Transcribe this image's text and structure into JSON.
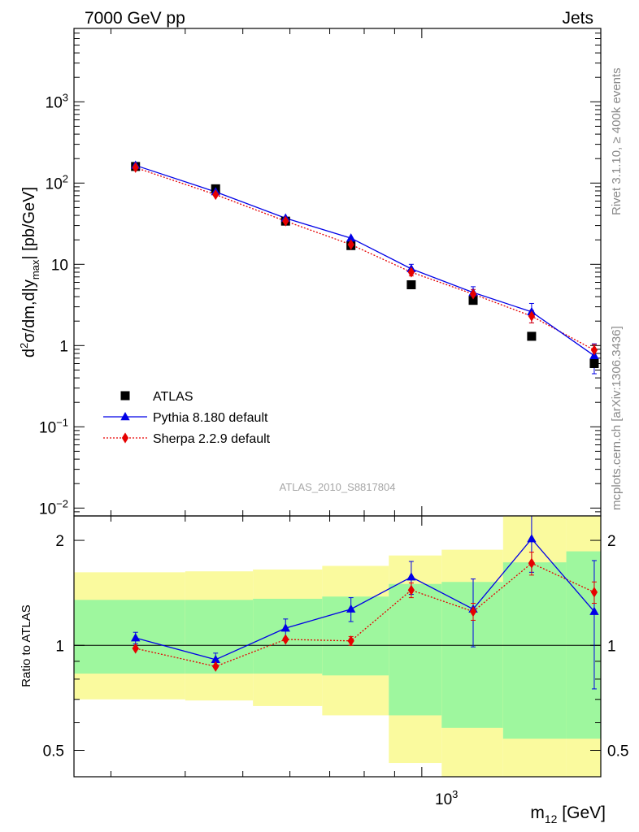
{
  "header": {
    "left": "7000 GeV pp",
    "right": "Jets"
  },
  "side_labels": {
    "rivet": "Rivet 3.1.10, ≥ 400k events",
    "mcplots": "mcplots.cern.ch [arXiv:1306.3436]"
  },
  "watermark": "ATLAS_2010_S8817804",
  "colors": {
    "atlas": "#000000",
    "pythia": "#0000e6",
    "sherpa": "#e60000",
    "band_inner": "#9ef79e",
    "band_outer": "#fafa9e"
  },
  "chart_data": [
    {
      "type": "scatter",
      "ylabel": "d²σ/dm,d|yₘₐₓ| [pb/GeV]",
      "ylabel_parts": {
        "a": "d",
        "b": "2",
        "c": "σ/dm,d|y",
        "d": "max",
        "e": "| [pb/GeV]"
      },
      "yscale": "log",
      "ylim": [
        0.008,
        8000
      ],
      "xscale": "log",
      "xlim": [
        260,
        2000
      ],
      "yticks": [
        "10⁻²",
        "10⁻¹",
        "1",
        "10",
        "10²",
        "10³"
      ],
      "ytick_parts": [
        {
          "base": "10",
          "exp": "−2",
          "value": 0.01
        },
        {
          "base": "10",
          "exp": "−1",
          "value": 0.1
        },
        {
          "base": "1",
          "exp": "",
          "value": 1
        },
        {
          "base": "10",
          "exp": "",
          "value": 10
        },
        {
          "base": "10",
          "exp": "2",
          "value": 100
        },
        {
          "base": "10",
          "exp": "3",
          "value": 1000
        }
      ],
      "legend_position": "bottom-left",
      "series": [
        {
          "name": "ATLAS",
          "marker": "square",
          "x": [
            330,
            450,
            590,
            760,
            960,
            1220,
            1530,
            1950
          ],
          "y": [
            160,
            85,
            34,
            17,
            5.6,
            3.6,
            1.3,
            0.6
          ]
        },
        {
          "name": "Pythia 8.180 default",
          "marker": "triangle",
          "line": "solid",
          "x": [
            330,
            450,
            590,
            760,
            960,
            1220,
            1530,
            1950
          ],
          "y": [
            165,
            78,
            37,
            21,
            8.8,
            4.5,
            2.6,
            0.75
          ],
          "yerr": [
            0,
            0,
            0,
            0,
            1.2,
            0.8,
            0.7,
            0.3
          ]
        },
        {
          "name": "Sherpa 2.2.9 default",
          "marker": "diamond",
          "line": "dotted",
          "x": [
            330,
            450,
            590,
            760,
            960,
            1220,
            1530,
            1950
          ],
          "y": [
            155,
            72,
            34,
            17.5,
            8.0,
            4.3,
            2.3,
            0.88
          ],
          "yerr": [
            0,
            0,
            0,
            0,
            0.8,
            0.6,
            0.4,
            0.15
          ]
        }
      ]
    },
    {
      "type": "scatter",
      "ylabel": "Ratio to ATLAS",
      "xlabel": "m₁₂ [GeV]",
      "xlabel_parts": {
        "a": "m",
        "b": "12",
        "c": " [GeV]"
      },
      "xscale": "log",
      "xlim": [
        260,
        2000
      ],
      "xtick_label": {
        "base": "10",
        "exp": "3",
        "value": 1000
      },
      "yscale": "log",
      "ylim": [
        0.42,
        2.35
      ],
      "yticks": [
        "0.5",
        "1",
        "2"
      ],
      "ytick_values": [
        0.5,
        1,
        2
      ],
      "bands": {
        "x_edges": [
          260,
          400,
          520,
          680,
          880,
          1080,
          1370,
          1750,
          2000
        ],
        "outer_lo": [
          0.7,
          0.695,
          0.67,
          0.63,
          0.46,
          0.4,
          0.3,
          0.3
        ],
        "outer_hi": [
          1.62,
          1.63,
          1.65,
          1.69,
          1.81,
          1.88,
          2.5,
          2.5
        ],
        "inner_lo": [
          0.83,
          0.83,
          0.83,
          0.82,
          0.63,
          0.58,
          0.54,
          0.54
        ],
        "inner_hi": [
          1.35,
          1.35,
          1.36,
          1.38,
          1.5,
          1.52,
          1.73,
          1.86
        ]
      },
      "series": [
        {
          "name": "Pythia 8.180 default",
          "x": [
            330,
            450,
            590,
            760,
            960,
            1220,
            1530,
            1950
          ],
          "y": [
            1.05,
            0.91,
            1.12,
            1.27,
            1.57,
            1.27,
            2.02,
            1.25
          ],
          "yerr_lo": [
            0.04,
            0.04,
            0.07,
            0.1,
            0.17,
            0.28,
            0.4,
            0.5
          ],
          "yerr_hi": [
            0.04,
            0.04,
            0.07,
            0.1,
            0.17,
            0.28,
            0.4,
            0.5
          ]
        },
        {
          "name": "Sherpa 2.2.9 default",
          "x": [
            330,
            450,
            590,
            760,
            960,
            1220,
            1530,
            1950
          ],
          "y": [
            0.98,
            0.87,
            1.04,
            1.03,
            1.44,
            1.25,
            1.72,
            1.42
          ],
          "yerr_lo": [
            0,
            0,
            0,
            0.03,
            0.07,
            0.07,
            0.13,
            0.1
          ],
          "yerr_hi": [
            0,
            0,
            0,
            0.03,
            0.07,
            0.07,
            0.13,
            0.1
          ]
        }
      ]
    }
  ]
}
